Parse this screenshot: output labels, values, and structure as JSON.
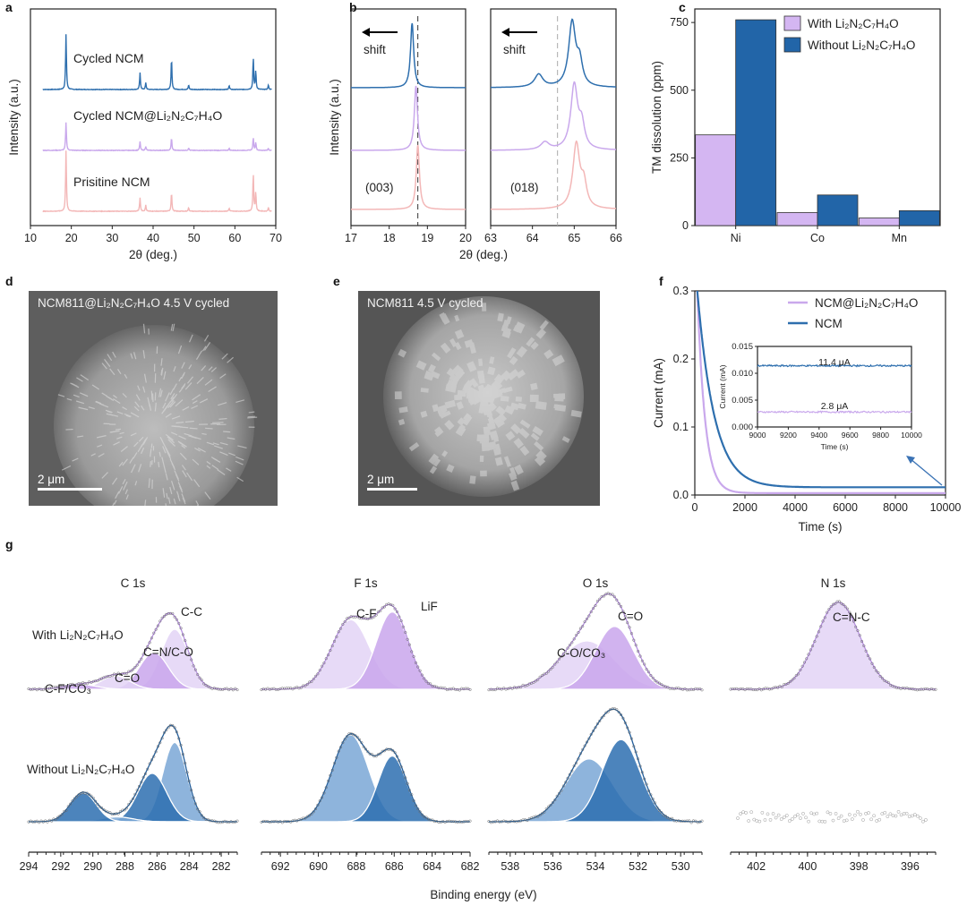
{
  "panels": {
    "a": "a",
    "b": "b",
    "c": "c",
    "d": "d",
    "e": "e",
    "f": "f",
    "g": "g"
  },
  "chart_data": [
    {
      "id": "a",
      "type": "line",
      "xlabel": "2θ (deg.)",
      "ylabel": "Intensity (a.u.)",
      "xlim": [
        10,
        70
      ],
      "xticks": [
        10,
        20,
        30,
        40,
        50,
        60,
        70
      ],
      "peaks_deg": [
        18.7,
        36.8,
        38.2,
        44.5,
        48.7,
        58.6,
        64.5,
        65.1,
        68.2
      ],
      "series": [
        {
          "name": "Cycled NCM",
          "color": "#2e6fae",
          "rel_heights": [
            1.0,
            0.3,
            0.12,
            0.55,
            0.08,
            0.07,
            0.55,
            0.32,
            0.08
          ]
        },
        {
          "name": "Cycled NCM@Li₂N₂C₇H₄O",
          "color": "#c9a8ec",
          "rel_heights": [
            0.7,
            0.22,
            0.1,
            0.3,
            0.06,
            0.05,
            0.3,
            0.2,
            0.05
          ]
        },
        {
          "name": "Prisitine NCM",
          "color": "#f3b7b7",
          "rel_heights": [
            1.0,
            0.22,
            0.1,
            0.3,
            0.06,
            0.05,
            0.6,
            0.3,
            0.06
          ]
        }
      ]
    },
    {
      "id": "b",
      "type": "line",
      "xlabel": "2θ (deg.)",
      "ylabel": "Intensity (a.u.)",
      "left": {
        "xlim": [
          17,
          20
        ],
        "xticks": [
          17,
          18,
          19,
          20
        ],
        "label": "(003)",
        "ref": 18.75,
        "peaks": [
          18.6,
          18.7,
          18.75
        ]
      },
      "right": {
        "xlim": [
          63,
          66
        ],
        "xticks": [
          63,
          64,
          65,
          66
        ],
        "label": "(018)",
        "ref": 64.6,
        "peaks": [
          64.95,
          65.0,
          65.05
        ],
        "side_peaks": [
          64.15,
          64.3,
          null
        ]
      },
      "shift_label": "shift"
    },
    {
      "id": "c",
      "type": "bar",
      "ylabel": "TM dissolution (ppm)",
      "categories": [
        "Ni",
        "Co",
        "Mn"
      ],
      "ylim": [
        0,
        800
      ],
      "yticks": [
        0,
        250,
        500,
        750
      ],
      "series": [
        {
          "name": "With Li₂N₂C₇H₄O",
          "color": "#d4b6f2",
          "values": [
            335,
            48,
            28
          ]
        },
        {
          "name": "Without Li₂N₂C₇H₄O",
          "color": "#2265a8",
          "values": [
            760,
            113,
            55
          ]
        }
      ],
      "legend": "top-right"
    },
    {
      "id": "f",
      "type": "line",
      "xlabel": "Time (s)",
      "ylabel": "Current (mA)",
      "xlim": [
        0,
        10000
      ],
      "xticks": [
        0,
        2000,
        4000,
        6000,
        8000,
        10000
      ],
      "ylim": [
        0,
        0.3
      ],
      "yticks": [
        0.0,
        0.1,
        0.2,
        0.3
      ],
      "series": [
        {
          "name": "NCM@Li₂N₂C₇H₄O",
          "color": "#c9a8ec",
          "steady": 0.0028
        },
        {
          "name": "NCM",
          "color": "#2e6fae",
          "steady": 0.0114
        }
      ],
      "inset": {
        "xlabel": "Time (s)",
        "ylabel": "Current (mA)",
        "xlim": [
          9000,
          10000
        ],
        "xticks": [
          9000,
          9200,
          9400,
          9600,
          9800,
          10000
        ],
        "ylim": [
          0,
          0.015
        ],
        "yticks": [
          "0.000",
          "0.005",
          "0.010",
          "0.015"
        ],
        "annotations": [
          "11.4 μA",
          "2.8 μA"
        ]
      }
    },
    {
      "id": "g",
      "type": "line",
      "xlabel": "Binding energy (eV)",
      "rows": [
        "With Li₂N₂C₇H₄O",
        "Without Li₂N₂C₇H₄O"
      ],
      "subpanels": [
        {
          "title": "C 1s",
          "xlim": [
            294,
            281
          ],
          "xticks": [
            294,
            292,
            290,
            288,
            286,
            284,
            282
          ],
          "labels": [
            "C-C",
            "C=N/C-O",
            "C=O",
            "C-F/CO₃"
          ]
        },
        {
          "title": "F 1s",
          "xlim": [
            693,
            682
          ],
          "xticks": [
            692,
            690,
            688,
            686,
            684,
            682
          ],
          "labels": [
            "C-F",
            "LiF"
          ]
        },
        {
          "title": "O 1s",
          "xlim": [
            539,
            529
          ],
          "xticks": [
            538,
            536,
            534,
            532,
            530
          ],
          "labels": [
            "C=O",
            "C-O/CO₃"
          ]
        },
        {
          "title": "N 1s",
          "xlim": [
            403,
            395
          ],
          "xticks": [
            402,
            400,
            398,
            396
          ],
          "labels": [
            "C=N-C"
          ]
        }
      ]
    }
  ],
  "sem": {
    "d": {
      "caption": "NCM811@Li₂N₂C₇H₄O 4.5 V cycled",
      "scale": "2 μm"
    },
    "e": {
      "caption": "NCM811 4.5 V cycled",
      "scale": "2 μm"
    }
  }
}
